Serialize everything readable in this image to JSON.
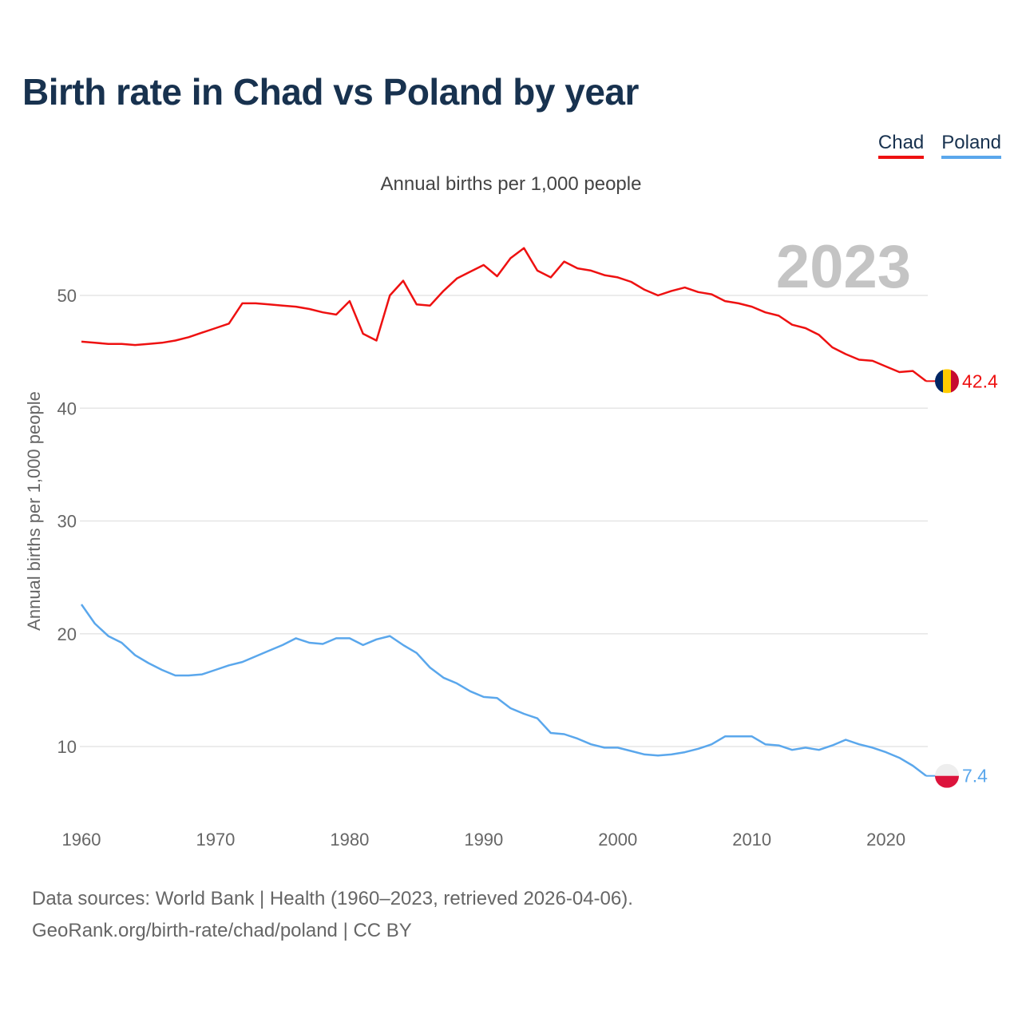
{
  "header": {
    "title": "Birth rate in Chad vs Poland by year",
    "subtitle": "Annual births per 1,000 people"
  },
  "legend": [
    {
      "label": "Chad",
      "color": "#ee1111"
    },
    {
      "label": "Poland",
      "color": "#5aa7ec"
    }
  ],
  "footer": {
    "source_line1": "Data sources: World Bank | Health (1960–2023, retrieved 2026-04-06).",
    "source_line2": "GeoRank.org/birth-rate/chad/poland | CC BY"
  },
  "chart_data": {
    "type": "line",
    "title": "Birth rate in Chad vs Poland by year",
    "ylabel": "Annual births per 1,000 people",
    "xlabel": "",
    "current_year": "2023",
    "xlim": [
      1960,
      2023
    ],
    "ylim": [
      5,
      57
    ],
    "y_ticks": [
      10,
      20,
      30,
      40,
      50
    ],
    "x_ticks": [
      1960,
      1970,
      1980,
      1990,
      2000,
      2010,
      2020
    ],
    "grid": true,
    "legend_position": "top-right",
    "x": [
      1960,
      1961,
      1962,
      1963,
      1964,
      1965,
      1966,
      1967,
      1968,
      1969,
      1970,
      1971,
      1972,
      1973,
      1974,
      1975,
      1976,
      1977,
      1978,
      1979,
      1980,
      1981,
      1982,
      1983,
      1984,
      1985,
      1986,
      1987,
      1988,
      1989,
      1990,
      1991,
      1992,
      1993,
      1994,
      1995,
      1996,
      1997,
      1998,
      1999,
      2000,
      2001,
      2002,
      2003,
      2004,
      2005,
      2006,
      2007,
      2008,
      2009,
      2010,
      2011,
      2012,
      2013,
      2014,
      2015,
      2016,
      2017,
      2018,
      2019,
      2020,
      2021,
      2022,
      2023
    ],
    "series": [
      {
        "name": "Chad",
        "color": "#ee1111",
        "end_label": "42.4",
        "values": [
          45.9,
          45.8,
          45.7,
          45.7,
          45.6,
          45.7,
          45.8,
          46.0,
          46.3,
          46.7,
          47.1,
          47.5,
          49.3,
          49.3,
          49.2,
          49.1,
          49.0,
          48.8,
          48.5,
          48.3,
          49.5,
          46.6,
          46.0,
          50.0,
          51.3,
          49.2,
          49.1,
          50.4,
          51.5,
          52.1,
          52.7,
          51.7,
          53.3,
          54.2,
          52.2,
          51.6,
          53.0,
          52.4,
          52.2,
          51.8,
          51.6,
          51.2,
          50.5,
          50.0,
          50.4,
          50.7,
          50.3,
          50.1,
          49.5,
          49.3,
          49.0,
          48.5,
          48.2,
          47.4,
          47.1,
          46.5,
          45.4,
          44.8,
          44.3,
          44.2,
          43.7,
          43.2,
          43.3,
          42.4
        ]
      },
      {
        "name": "Poland",
        "color": "#5aa7ec",
        "end_label": "7.4",
        "values": [
          22.6,
          20.9,
          19.8,
          19.2,
          18.1,
          17.4,
          16.8,
          16.3,
          16.3,
          16.4,
          16.8,
          17.2,
          17.5,
          18.0,
          18.5,
          19.0,
          19.6,
          19.2,
          19.1,
          19.6,
          19.6,
          19.0,
          19.5,
          19.8,
          19.0,
          18.3,
          17.0,
          16.1,
          15.6,
          14.9,
          14.4,
          14.3,
          13.4,
          12.9,
          12.5,
          11.2,
          11.1,
          10.7,
          10.2,
          9.9,
          9.9,
          9.6,
          9.3,
          9.2,
          9.3,
          9.5,
          9.8,
          10.2,
          10.9,
          10.9,
          10.9,
          10.2,
          10.1,
          9.7,
          9.9,
          9.7,
          10.1,
          10.6,
          10.2,
          9.9,
          9.5,
          9.0,
          8.3,
          7.4
        ]
      }
    ]
  }
}
